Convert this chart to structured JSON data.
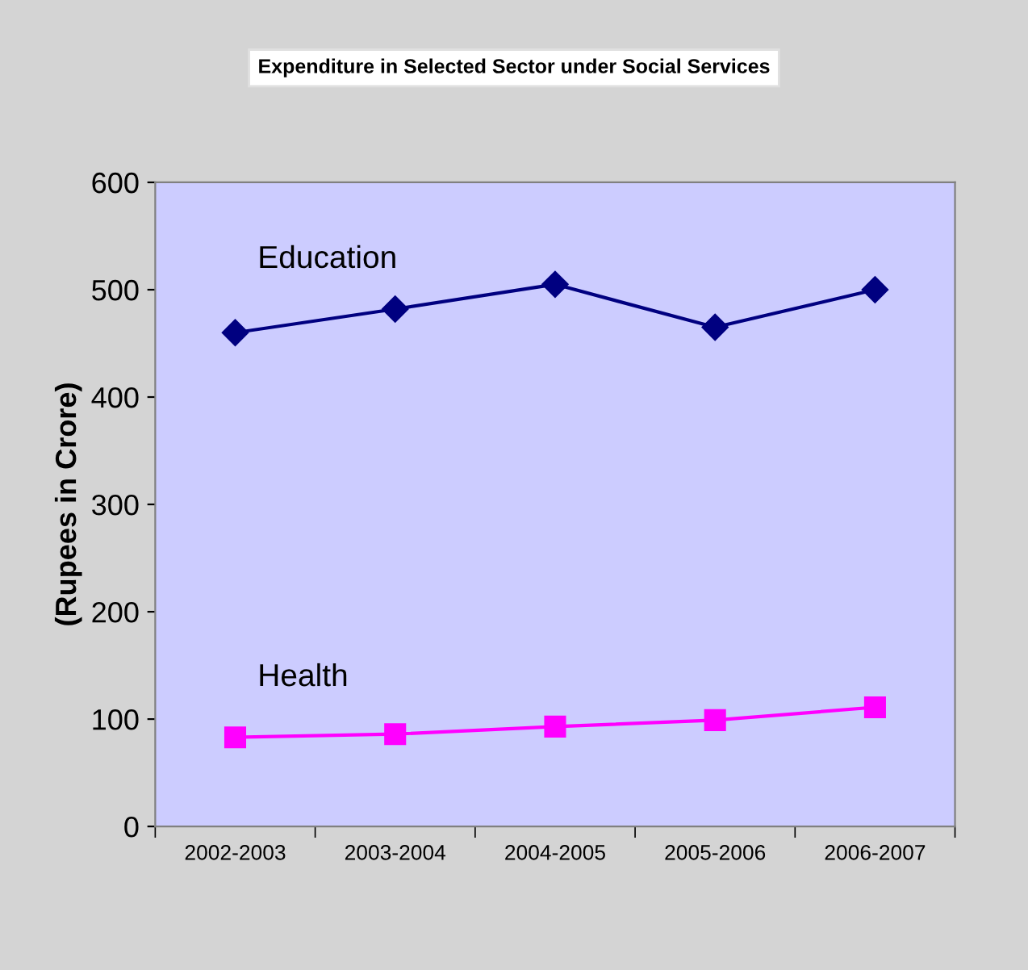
{
  "chart_data": {
    "type": "line",
    "title": "Expenditure in Selected Sector under Social Services",
    "ylabel": "(Rupees in Crore)",
    "categories": [
      "2002-2003",
      "2003-2004",
      "2004-2005",
      "2005-2006",
      "2006-2007"
    ],
    "series": [
      {
        "name": "Education",
        "color": "#000080",
        "marker": "diamond",
        "values": [
          460,
          482,
          505,
          465,
          500
        ]
      },
      {
        "name": "Health",
        "color": "#ff00ff",
        "marker": "square",
        "values": [
          83,
          86,
          93,
          99,
          111
        ]
      }
    ],
    "ylim": [
      0,
      600
    ],
    "yticks": [
      0,
      100,
      200,
      300,
      400,
      500,
      600
    ],
    "grid": false,
    "legend": false,
    "line_style": "solid"
  }
}
